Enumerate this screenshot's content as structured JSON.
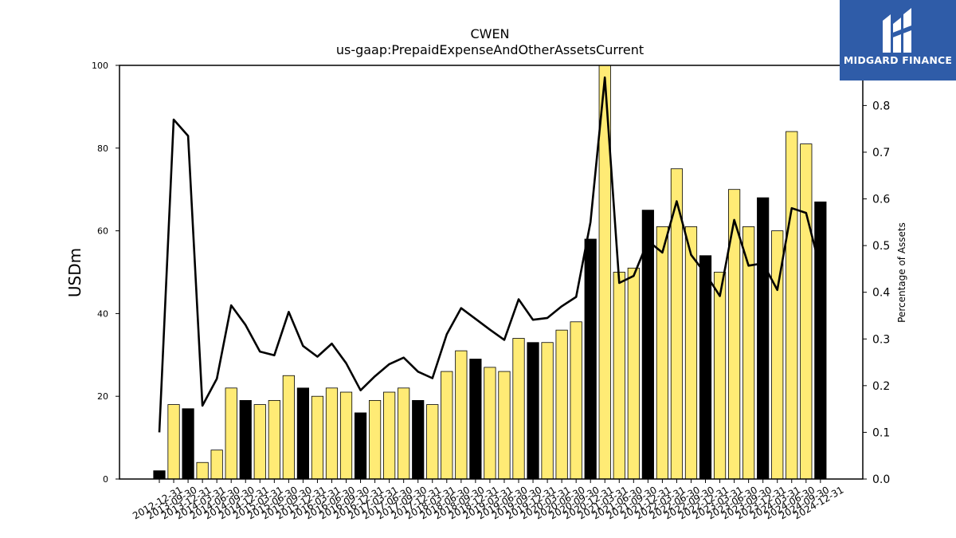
{
  "chart_data": {
    "type": "bar",
    "title": "CWEN",
    "subtitle": "us-gaap:PrepaidExpenseAndOtherAssetsCurrent",
    "ylabel": "USDm",
    "y2label": "Percentage of Assets",
    "ylim": [
      0,
      100
    ],
    "y2lim": [
      0,
      0.886
    ],
    "yticks": [
      "0",
      "20",
      "40",
      "60",
      "80",
      "100"
    ],
    "y2ticks": [
      "0.0",
      "0.1",
      "0.2",
      "0.3",
      "0.4",
      "0.5",
      "0.6",
      "0.7",
      "0.8"
    ],
    "categories": [
      "2012-12-31",
      "2013-09-30",
      "2013-12-31",
      "2014-03-31",
      "2014-06-30",
      "2014-09-30",
      "2014-12-31",
      "2015-03-31",
      "2015-06-30",
      "2015-09-30",
      "2015-12-31",
      "2016-03-31",
      "2016-06-30",
      "2016-09-30",
      "2016-12-31",
      "2017-03-31",
      "2017-06-30",
      "2017-09-30",
      "2017-12-31",
      "2018-03-31",
      "2018-06-30",
      "2018-09-30",
      "2018-12-31",
      "2019-03-31",
      "2019-06-30",
      "2019-09-30",
      "2019-12-31",
      "2020-03-31",
      "2020-06-30",
      "2020-09-30",
      "2020-12-31",
      "2021-03-31",
      "2021-06-30",
      "2021-09-30",
      "2021-12-31",
      "2022-03-31",
      "2022-06-30",
      "2022-09-30",
      "2022-12-31",
      "2023-03-31",
      "2023-06-30",
      "2023-09-30",
      "2023-12-31",
      "2024-03-31",
      "2024-06-30",
      "2024-09-30",
      "2024-12-31"
    ],
    "series": [
      {
        "values": [
          2,
          18,
          17,
          4,
          7,
          22,
          19,
          18,
          19,
          25,
          22,
          20,
          22,
          21,
          16,
          19,
          21,
          22,
          19,
          18,
          26,
          31,
          29,
          27,
          26,
          34,
          33,
          33,
          36,
          38,
          58,
          100,
          50,
          51,
          65,
          61,
          75,
          61,
          54,
          50,
          70,
          61,
          68,
          60,
          84,
          81,
          67
        ],
        "is_year_end": [
          true,
          false,
          true,
          false,
          false,
          false,
          true,
          false,
          false,
          false,
          true,
          false,
          false,
          false,
          true,
          false,
          false,
          false,
          true,
          false,
          false,
          false,
          true,
          false,
          false,
          false,
          true,
          false,
          false,
          false,
          true,
          false,
          false,
          false,
          true,
          false,
          false,
          false,
          true,
          false,
          false,
          false,
          true,
          false,
          false,
          false,
          true
        ]
      },
      {
        "values": [
          0.1,
          0.77,
          0.735,
          0.157,
          0.215,
          0.372,
          0.33,
          0.273,
          0.265,
          0.358,
          0.285,
          0.262,
          0.29,
          0.248,
          0.19,
          0.22,
          0.246,
          0.26,
          0.23,
          0.216,
          0.31,
          0.366,
          0.343,
          0.32,
          0.298,
          0.385,
          0.341,
          0.345,
          0.37,
          0.39,
          0.55,
          0.86,
          0.42,
          0.435,
          0.51,
          0.485,
          0.595,
          0.48,
          0.44,
          0.392,
          0.555,
          0.457,
          0.462,
          0.405,
          0.58,
          0.57,
          0.45
        ]
      }
    ],
    "colors": {
      "bar_fill": "#ffeb75",
      "year_end_fill": "#000000",
      "line": "#000000"
    }
  },
  "logo": {
    "text": "MIDGARD FINANCE",
    "bg": "#2f5ca8"
  }
}
